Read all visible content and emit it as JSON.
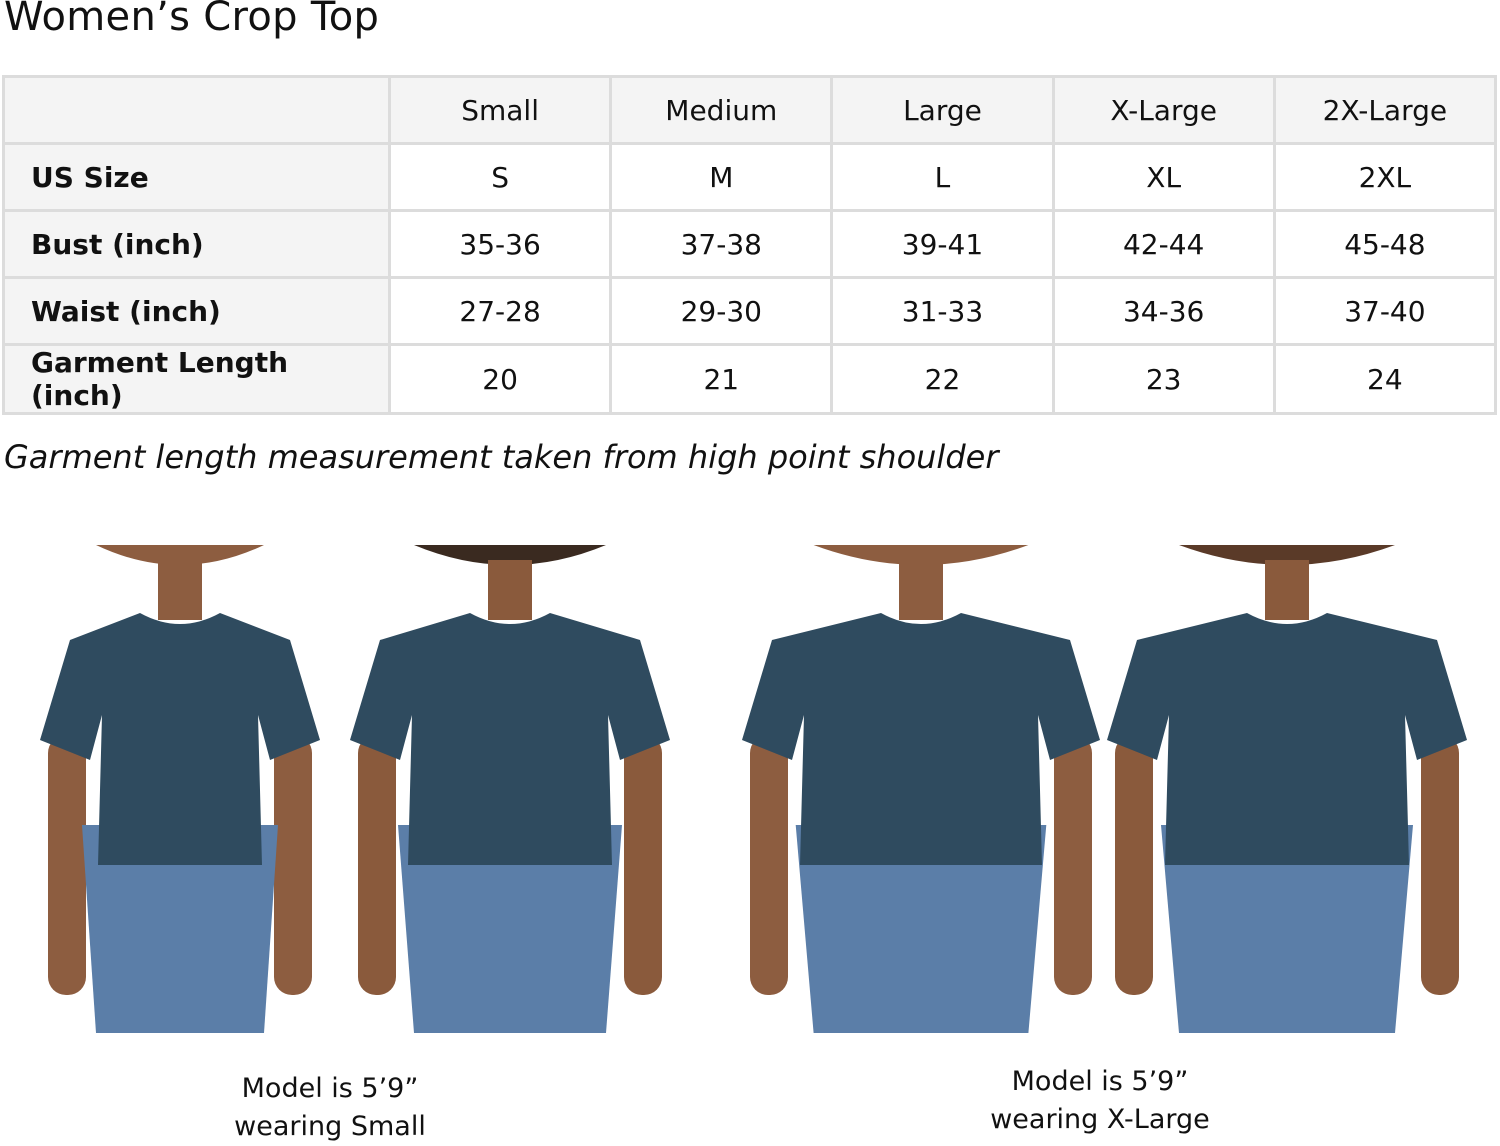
{
  "title": "Women’s Crop Top",
  "table": {
    "columns": [
      "",
      "Small",
      "Medium",
      "Large",
      "X-Large",
      "2X-Large"
    ],
    "rows": [
      {
        "label": "US Size",
        "values": [
          "S",
          "M",
          "L",
          "XL",
          "2XL"
        ]
      },
      {
        "label": "Bust (inch)",
        "values": [
          "35-36",
          "37-38",
          "39-41",
          "42-44",
          "45-48"
        ]
      },
      {
        "label": "Waist (inch)",
        "values": [
          "27-28",
          "29-30",
          "31-33",
          "34-36",
          "37-40"
        ]
      },
      {
        "label": "Garment Length (inch)",
        "values": [
          "20",
          "21",
          "22",
          "23",
          "24"
        ]
      }
    ]
  },
  "note": "Garment length measurement taken from high point shoulder",
  "captions": [
    {
      "line1": "Model is 5’9”",
      "line2": "wearing Small"
    },
    {
      "line1": "Model is 5’9”",
      "line2": "wearing X-Large"
    }
  ],
  "colors": {
    "shirt": "#2f4b5f",
    "jeans": "#5b7ea8",
    "header_bg": "#f4f4f4",
    "border": "#dcdcdc"
  }
}
